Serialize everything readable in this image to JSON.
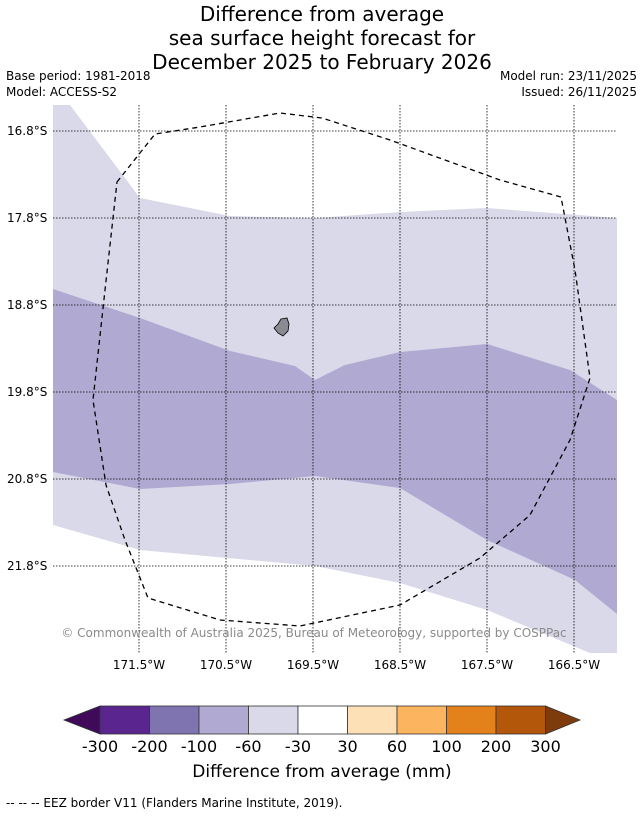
{
  "title_lines": [
    "Difference from average",
    "sea surface height forecast for",
    "December 2025 to February 2026"
  ],
  "meta": {
    "base_period": "Base period: 1981-2018",
    "model": "Model: ACCESS-S2",
    "model_run": "Model run: 23/11/2025",
    "issued": "Issued: 26/11/2025"
  },
  "map": {
    "lat_labels": [
      "16.8°S",
      "17.8°S",
      "18.8°S",
      "19.8°S",
      "20.8°S",
      "21.8°S"
    ],
    "lon_labels": [
      "171.5°W",
      "170.5°W",
      "169.5°W",
      "168.5°W",
      "167.5°W",
      "166.5°W"
    ],
    "copyright": "© Commonwealth of Australia 2025, Bureau of Meteorology, supported by COSPPac",
    "colors": {
      "band_neg100_neg60": "#b0a9d1",
      "band_neg60_neg30": "#d9d9ea",
      "land": "#8a8a92",
      "eez_line": "#000000"
    }
  },
  "colorbar": {
    "ticks": [
      "-300",
      "-200",
      "-100",
      "-60",
      "-30",
      "30",
      "60",
      "100",
      "200",
      "300"
    ],
    "colors": {
      "under": "#3f0a5a",
      "c1": "#5b2590",
      "c2": "#8074b0",
      "c3": "#b0a9d1",
      "c4": "#d9d9ea",
      "c5": "#ffffff",
      "c6": "#fde0b6",
      "c7": "#fcb55e",
      "c8": "#e3821a",
      "c9": "#b3580a",
      "over": "#7e3b0c"
    },
    "title": "Difference from average (mm)"
  },
  "legend_note": "--  --  -- EEZ border V11 (Flanders Marine Institute, 2019)."
}
